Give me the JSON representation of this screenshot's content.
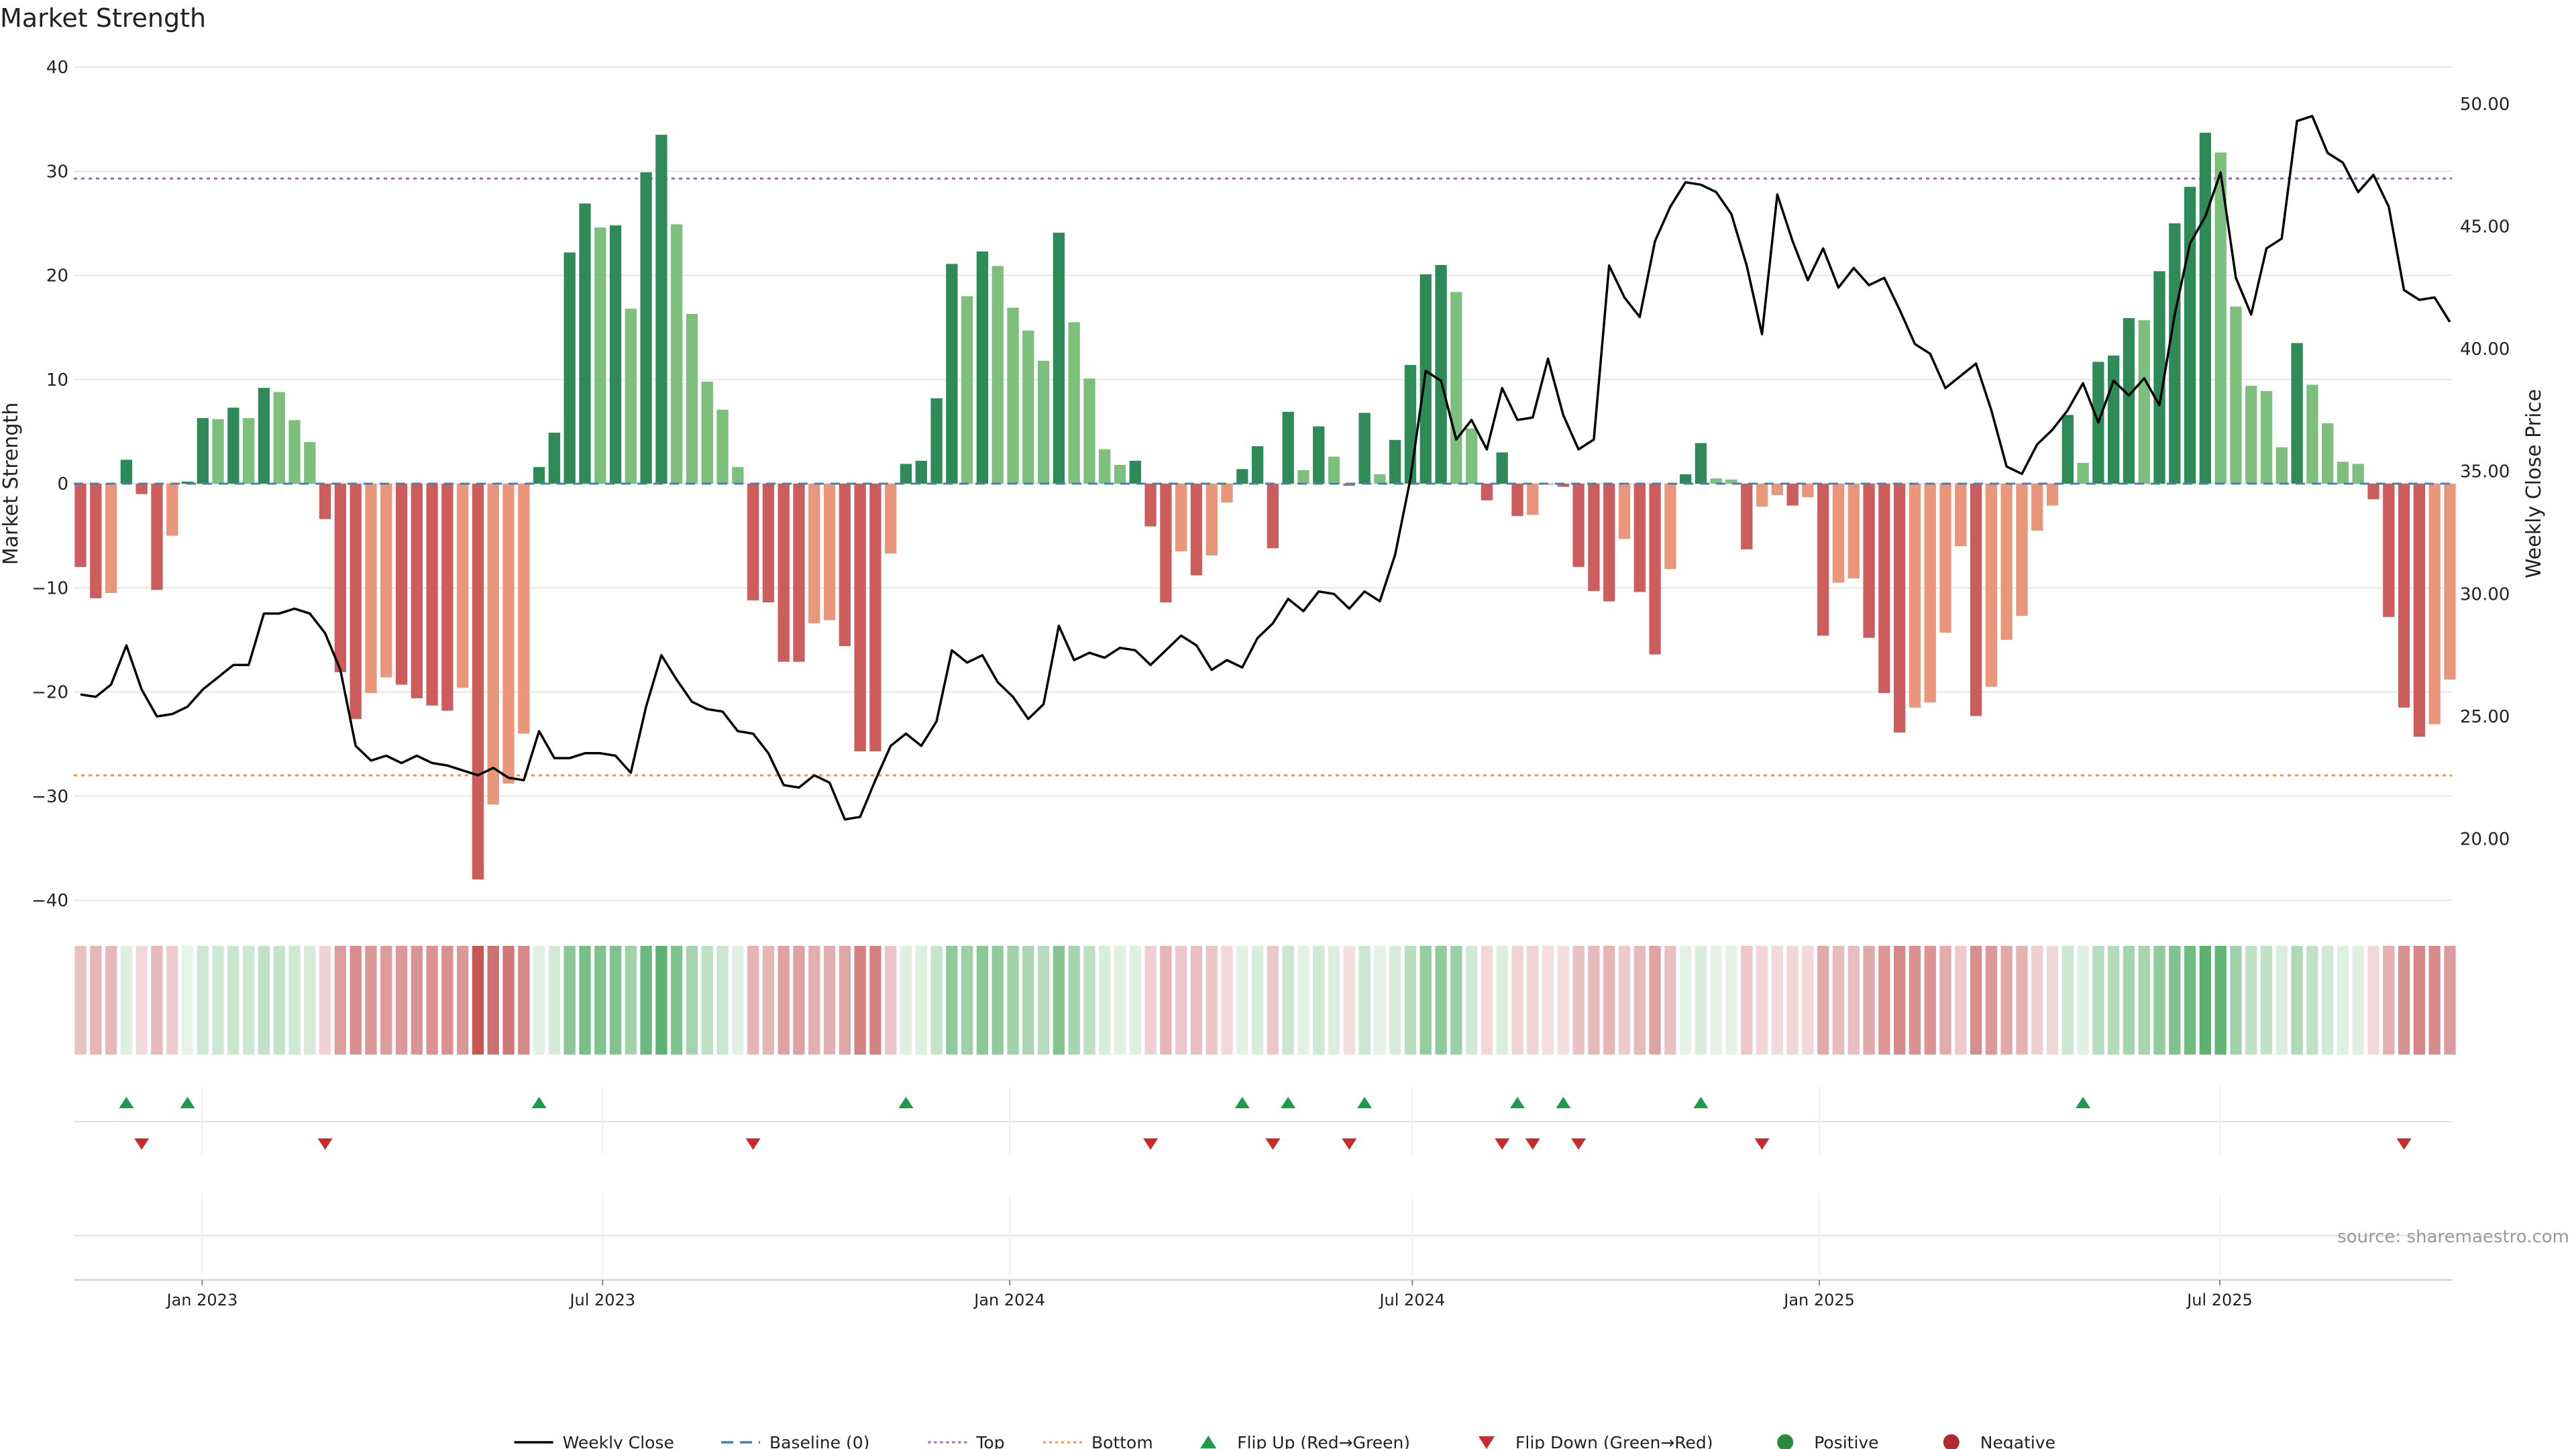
{
  "title": "Market Strength",
  "source": "source: sharemaestro.com",
  "chart_data": {
    "type": "bar",
    "title": "Market Strength",
    "ylabel": "Market Strength",
    "y2label": "Weekly Close Price",
    "ylim": [
      -40,
      40
    ],
    "y2lim": [
      17.5,
      51.5
    ],
    "yticks": [
      "−40",
      "−30",
      "−20",
      "−10",
      "0",
      "10",
      "20",
      "30",
      "40"
    ],
    "y2ticks": [
      "20.00",
      "25.00",
      "30.00",
      "35.00",
      "40.00",
      "45.00",
      "50.00"
    ],
    "x_start": "2022-11-07",
    "x_end": "2025-10-13",
    "xticks": [
      {
        "label": "Jan 2023",
        "date": "2023-01-01"
      },
      {
        "label": "Jul 2023",
        "date": "2023-07-01"
      },
      {
        "label": "Jan 2024",
        "date": "2024-01-01"
      },
      {
        "label": "Jul 2024",
        "date": "2024-07-01"
      },
      {
        "label": "Jan 2025",
        "date": "2025-01-01"
      },
      {
        "label": "Jul 2025",
        "date": "2025-07-01"
      }
    ],
    "top_threshold": 29.3,
    "bottom_threshold": -28.0,
    "grid": true,
    "legend_position": "bottom-center",
    "series": [
      {
        "name": "Market Strength",
        "values": [
          -8,
          -11,
          -10.5,
          2.3,
          -1,
          -10.2,
          -5,
          0.2,
          6.3,
          6.2,
          7.3,
          6.3,
          9.2,
          8.8,
          6.1,
          4,
          -3.4,
          -18.1,
          -22.6,
          -20.1,
          -18.6,
          -19.3,
          -20.6,
          -21.3,
          -21.8,
          -19.6,
          -38,
          -30.8,
          -28.8,
          -24,
          1.6,
          4.9,
          22.2,
          26.9,
          24.6,
          24.8,
          16.8,
          29.9,
          33.5,
          24.9,
          16.3,
          9.8,
          7.1,
          1.6,
          -11.2,
          -11.4,
          -17.1,
          -17.1,
          -13.4,
          -13.1,
          -15.6,
          -25.7,
          -25.7,
          -6.7,
          1.9,
          2.2,
          8.2,
          21.1,
          18,
          22.3,
          20.9,
          16.9,
          14.7,
          11.8,
          24.1,
          15.5,
          10.1,
          3.3,
          1.8,
          2.2,
          -4.1,
          -11.4,
          -6.5,
          -8.8,
          -6.9,
          -1.8,
          1.4,
          3.6,
          -6.2,
          6.9,
          1.3,
          5.5,
          2.6,
          -0.2,
          6.8,
          0.9,
          4.2,
          11.4,
          20.1,
          21,
          18.4,
          5.3,
          -1.6,
          3,
          -3.1,
          -3,
          -0.1,
          -0.3,
          -8,
          -10.3,
          -11.3,
          -5.3,
          -10.4,
          -16.4,
          -8.2,
          0.9,
          3.9,
          0.5,
          0.4,
          -6.3,
          -2.2,
          -1.1,
          -2.1,
          -1.3,
          -14.6,
          -9.5,
          -9.1,
          -14.8,
          -20.1,
          -23.9,
          -21.5,
          -21,
          -14.3,
          -6,
          -22.3,
          -19.5,
          -15,
          -12.7,
          -4.5,
          -2.1,
          6.6,
          2,
          11.7,
          12.3,
          15.9,
          15.7,
          20.4,
          25,
          28.5,
          33.7,
          31.8,
          17,
          9.4,
          8.9,
          3.5,
          13.5,
          9.5,
          5.8,
          2.1,
          1.9,
          -1.5,
          -12.8,
          -21.5,
          -24.3,
          -23.1,
          -18.8
        ]
      },
      {
        "name": "Weekly Close",
        "values": [
          25.9,
          25.8,
          26.3,
          27.9,
          26.1,
          25,
          25.1,
          25.4,
          26.1,
          26.6,
          27.1,
          27.1,
          29.2,
          29.2,
          29.4,
          29.2,
          28.4,
          26.9,
          23.8,
          23.2,
          23.4,
          23.1,
          23.4,
          23.1,
          23,
          22.8,
          22.6,
          22.9,
          22.5,
          22.4,
          24.4,
          23.3,
          23.3,
          23.5,
          23.5,
          23.4,
          22.7,
          25.4,
          27.5,
          26.5,
          25.6,
          25.3,
          25.2,
          24.4,
          24.3,
          23.5,
          22.2,
          22.1,
          22.6,
          22.3,
          20.8,
          20.9,
          22.4,
          23.8,
          24.3,
          23.8,
          24.8,
          27.7,
          27.2,
          27.5,
          26.4,
          25.8,
          24.9,
          25.5,
          28.7,
          27.3,
          27.6,
          27.4,
          27.8,
          27.7,
          27.1,
          27.7,
          28.3,
          27.9,
          26.9,
          27.3,
          27,
          28.2,
          28.8,
          29.8,
          29.3,
          30.1,
          30,
          29.4,
          30.1,
          29.7,
          31.6,
          34.7,
          39.1,
          38.7,
          36.3,
          37.1,
          35.9,
          38.4,
          37.1,
          37.2,
          39.6,
          37.3,
          35.9,
          36.3,
          43.4,
          42.1,
          41.3,
          44.4,
          45.8,
          46.8,
          46.7,
          46.4,
          45.5,
          43.4,
          40.6,
          46.3,
          44.4,
          42.8,
          44.1,
          42.5,
          43.3,
          42.6,
          42.9,
          41.6,
          40.2,
          39.8,
          38.4,
          38.9,
          39.4,
          37.5,
          35.2,
          34.9,
          36.1,
          36.7,
          37.5,
          38.6,
          37,
          38.7,
          38.1,
          38.8,
          37.7,
          41.4,
          44.3,
          45.4,
          47.2,
          42.9,
          41.4,
          44.1,
          44.5,
          49.3,
          49.5,
          48,
          47.6,
          46.4,
          47.1,
          45.8,
          42.4,
          42,
          42.1,
          41.1
        ]
      }
    ],
    "flip_up_weeks": [
      3,
      7,
      30,
      54,
      76,
      79,
      84,
      94,
      97,
      106,
      131
    ],
    "flip_down_weeks": [
      4,
      16,
      44,
      70,
      78,
      83,
      93,
      95,
      98,
      110,
      152
    ]
  },
  "legend": [
    {
      "label": "Weekly Close",
      "symbol": "line",
      "color": "#000000"
    },
    {
      "label": "Baseline (0)",
      "symbol": "dash",
      "color": "#4a7fb0"
    },
    {
      "label": "Top",
      "symbol": "dotted",
      "color": "#9a5fc9"
    },
    {
      "label": "Bottom",
      "symbol": "dotted",
      "color": "#f0935a"
    },
    {
      "label": "Flip Up (Red→Green)",
      "symbol": "tri-up",
      "color": "#1e9a4b"
    },
    {
      "label": "Flip Down (Green→Red)",
      "symbol": "tri-down",
      "color": "#cc2a2a"
    },
    {
      "label": "Positive",
      "symbol": "dot",
      "color": "#2c8a3a"
    },
    {
      "label": "Negative",
      "symbol": "dot",
      "color": "#b02a2a"
    }
  ],
  "colors": {
    "pos_strong": "#2e8b57",
    "pos_weak": "#7dbf7d",
    "neg_strong": "#cd5c5c",
    "neg_weak": "#e9967a",
    "price_line": "#000000",
    "top_line": "#9a5fc9",
    "bottom_line": "#f0935a",
    "baseline": "#4a7fb0"
  }
}
